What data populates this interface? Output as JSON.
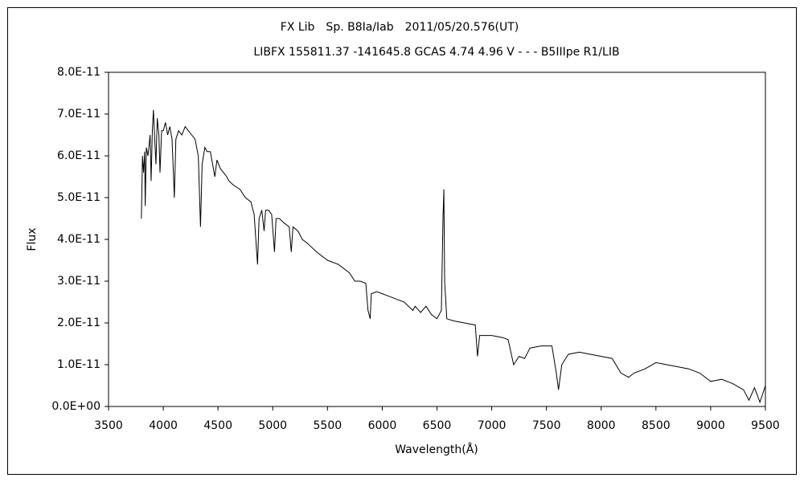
{
  "chart_data": {
    "type": "line",
    "title": "FX Lib　Sp. B8Ia/Iab　2011/05/20.576(UT)",
    "subtitle": "LIBFX 155811.37 -141645.8 GCAS 4.74 4.96 V - - - B5IIIpe R1/LIB",
    "x_label": "Wavelength(Å)",
    "y_label": "Flux",
    "xlim": [
      3500,
      9500
    ],
    "xticks": [
      3500,
      4000,
      4500,
      5000,
      5500,
      6000,
      6500,
      7000,
      7500,
      8000,
      8500,
      9000,
      9500
    ],
    "ylim": [
      0,
      8e-11
    ],
    "yticks": [
      {
        "value": 0,
        "label": "0.0E+00"
      },
      {
        "value": 1e-11,
        "label": "1.0E-11"
      },
      {
        "value": 2e-11,
        "label": "2.0E-11"
      },
      {
        "value": 3e-11,
        "label": "3.0E-11"
      },
      {
        "value": 4e-11,
        "label": "4.0E-11"
      },
      {
        "value": 5e-11,
        "label": "5.0E-11"
      },
      {
        "value": 6e-11,
        "label": "6.0E-11"
      },
      {
        "value": 7e-11,
        "label": "7.0E-11"
      },
      {
        "value": 8e-11,
        "label": "8.0E-11"
      }
    ],
    "grid": false,
    "color": "#000000",
    "x": [
      3800,
      3810,
      3820,
      3830,
      3835,
      3845,
      3860,
      3880,
      3889,
      3900,
      3910,
      3920,
      3933,
      3945,
      3960,
      3970,
      3985,
      4000,
      4020,
      4040,
      4060,
      4080,
      4101,
      4115,
      4140,
      4170,
      4200,
      4230,
      4260,
      4290,
      4320,
      4340,
      4355,
      4380,
      4400,
      4430,
      4471,
      4490,
      4520,
      4550,
      4580,
      4600,
      4640,
      4700,
      4750,
      4800,
      4830,
      4861,
      4875,
      4900,
      4921,
      4935,
      4960,
      4990,
      5016,
      5030,
      5060,
      5100,
      5150,
      5169,
      5185,
      5230,
      5270,
      5320,
      5400,
      5500,
      5600,
      5700,
      5750,
      5800,
      5850,
      5870,
      5890,
      5900,
      5950,
      6000,
      6050,
      6100,
      6200,
      6280,
      6300,
      6350,
      6400,
      6450,
      6500,
      6540,
      6555,
      6563,
      6570,
      6590,
      6650,
      6750,
      6850,
      6870,
      6890,
      6920,
      7000,
      7100,
      7150,
      7200,
      7250,
      7300,
      7350,
      7450,
      7550,
      7590,
      7610,
      7640,
      7700,
      7800,
      7900,
      8000,
      8100,
      8180,
      8250,
      8300,
      8400,
      8500,
      8600,
      8700,
      8800,
      8900,
      9000,
      9100,
      9200,
      9300,
      9350,
      9400,
      9450,
      9500
    ],
    "values": [
      4.5e-11,
      6e-11,
      5.6e-11,
      6.1e-11,
      4.8e-11,
      6.2e-11,
      6e-11,
      6.5e-11,
      5.4e-11,
      6.6e-11,
      7.1e-11,
      6.5e-11,
      5.8e-11,
      6.9e-11,
      6.5e-11,
      5.6e-11,
      6.6e-11,
      6.6e-11,
      6.8e-11,
      6.5e-11,
      6.7e-11,
      6.4e-11,
      5e-11,
      6.4e-11,
      6.6e-11,
      6.5e-11,
      6.7e-11,
      6.6e-11,
      6.5e-11,
      6.4e-11,
      6e-11,
      4.3e-11,
      5.8e-11,
      6.2e-11,
      6.1e-11,
      6.1e-11,
      5.5e-11,
      5.9e-11,
      5.7e-11,
      5.6e-11,
      5.5e-11,
      5.4e-11,
      5.3e-11,
      5.2e-11,
      5e-11,
      4.9e-11,
      4.6e-11,
      3.4e-11,
      4.5e-11,
      4.7e-11,
      4.2e-11,
      4.7e-11,
      4.7e-11,
      4.6e-11,
      3.7e-11,
      4.5e-11,
      4.5e-11,
      4.4e-11,
      4.3e-11,
      3.7e-11,
      4.3e-11,
      4.2e-11,
      4e-11,
      3.9e-11,
      3.7e-11,
      3.5e-11,
      3.4e-11,
      3.2e-11,
      3e-11,
      3e-11,
      2.95e-11,
      2.3e-11,
      2.1e-11,
      2.7e-11,
      2.75e-11,
      2.7e-11,
      2.65e-11,
      2.6e-11,
      2.5e-11,
      2.3e-11,
      2.4e-11,
      2.25e-11,
      2.4e-11,
      2.2e-11,
      2.1e-11,
      2.3e-11,
      4.5e-11,
      5.2e-11,
      3e-11,
      2.1e-11,
      2.05e-11,
      2e-11,
      1.95e-11,
      1.2e-11,
      1.7e-11,
      1.7e-11,
      1.7e-11,
      1.65e-11,
      1.6e-11,
      1e-11,
      1.2e-11,
      1.15e-11,
      1.4e-11,
      1.45e-11,
      1.45e-11,
      8e-12,
      4e-12,
      1e-11,
      1.25e-11,
      1.3e-11,
      1.25e-11,
      1.2e-11,
      1.15e-11,
      8e-12,
      7e-12,
      8e-12,
      9e-12,
      1.05e-11,
      1e-11,
      9.5e-12,
      9e-12,
      8e-12,
      6e-12,
      6.5e-12,
      5.5e-12,
      4e-12,
      1.5e-12,
      4.5e-12,
      1e-12,
      5e-12
    ]
  }
}
